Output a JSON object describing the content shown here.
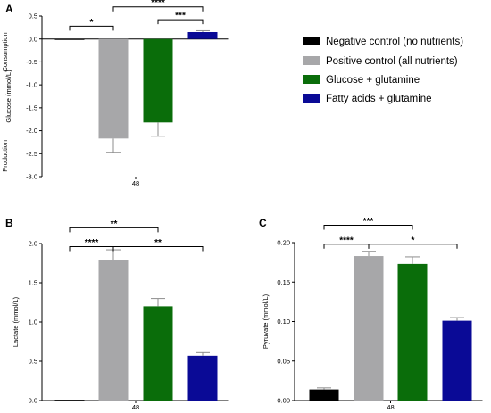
{
  "colors": {
    "negative": "#000000",
    "positive": "#a7a7a9",
    "glucose": "#0a6d0a",
    "fatty": "#0a0a96",
    "error": "#8c8c8c"
  },
  "legend": [
    {
      "label": "Negative control (no nutrients)",
      "color_key": "negative"
    },
    {
      "label": "Positive control (all nutrients)",
      "color_key": "positive"
    },
    {
      "label": "Glucose + glutamine",
      "color_key": "glucose"
    },
    {
      "label": "Fatty acids + glutamine",
      "color_key": "fatty"
    }
  ],
  "chart_data": [
    {
      "panel": "A",
      "type": "bar",
      "ylabel": "Glucose (mmol/L)",
      "side_labels": {
        "top": "Consumption",
        "bottom": "Production"
      },
      "x_category": "48",
      "ylim": [
        -3.0,
        0.5
      ],
      "yticks": [
        "0.5",
        "0.0",
        "-0.5",
        "-1.0",
        "-1.5",
        "-2.0",
        "-2.5",
        "-3.0"
      ],
      "ytick_values": [
        0.5,
        0.0,
        -0.5,
        -1.0,
        -1.5,
        -2.0,
        -2.5,
        -3.0
      ],
      "series": [
        {
          "color_key": "negative",
          "value": -0.02,
          "err": 0.0
        },
        {
          "color_key": "positive",
          "value": -2.17,
          "err": 0.3
        },
        {
          "color_key": "glucose",
          "value": -1.82,
          "err": 0.3
        },
        {
          "color_key": "fatty",
          "value": 0.15,
          "err": 0.03
        }
      ],
      "significance": [
        {
          "from": 0,
          "to": 1,
          "y": 0.28,
          "label": "*"
        },
        {
          "from": 1,
          "to": 3,
          "y": 0.7,
          "label": "****"
        },
        {
          "from": 2,
          "to": 3,
          "y": 0.42,
          "label": "***"
        }
      ]
    },
    {
      "panel": "B",
      "type": "bar",
      "ylabel": "Lactate (mmol/L)",
      "x_category": "48",
      "ylim": [
        0,
        2.0
      ],
      "yticks": [
        "0.0",
        "0.5",
        "1.0",
        "1.5",
        "2.0"
      ],
      "ytick_values": [
        0,
        0.5,
        1.0,
        1.5,
        2.0
      ],
      "series": [
        {
          "color_key": "negative",
          "value": 0.01,
          "err": 0.0
        },
        {
          "color_key": "positive",
          "value": 1.79,
          "err": 0.13
        },
        {
          "color_key": "glucose",
          "value": 1.2,
          "err": 0.1
        },
        {
          "color_key": "fatty",
          "value": 0.57,
          "err": 0.04
        }
      ],
      "significance": [
        {
          "from": 0,
          "to": 1,
          "y": 1.96,
          "label": "****"
        },
        {
          "from": 1,
          "to": 3,
          "y": 1.96,
          "label": "**"
        },
        {
          "from": 0,
          "to": 2,
          "y": 2.2,
          "label": "**"
        }
      ]
    },
    {
      "panel": "C",
      "type": "bar",
      "ylabel": "Pyruvate (mmol/L)",
      "x_category": "48",
      "ylim": [
        0,
        0.2
      ],
      "yticks": [
        "0.00",
        "0.05",
        "0.10",
        "0.15",
        "0.20"
      ],
      "ytick_values": [
        0,
        0.05,
        0.1,
        0.15,
        0.2
      ],
      "series": [
        {
          "color_key": "negative",
          "value": 0.014,
          "err": 0.002
        },
        {
          "color_key": "positive",
          "value": 0.183,
          "err": 0.006
        },
        {
          "color_key": "glucose",
          "value": 0.173,
          "err": 0.009
        },
        {
          "color_key": "fatty",
          "value": 0.101,
          "err": 0.004
        }
      ],
      "significance": [
        {
          "from": 0,
          "to": 1,
          "y": 0.198,
          "label": "****"
        },
        {
          "from": 1,
          "to": 3,
          "y": 0.198,
          "label": "*"
        },
        {
          "from": 0,
          "to": 2,
          "y": 0.222,
          "label": "***"
        }
      ]
    }
  ]
}
